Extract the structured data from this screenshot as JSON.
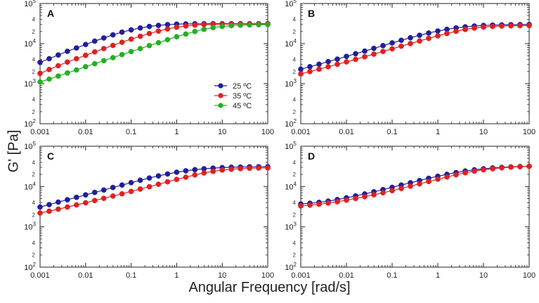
{
  "figure": {
    "ylabel": "G' [Pa]",
    "xlabel": "Angular Frequency [rad/s]"
  },
  "chart_data": [
    {
      "type": "scatter",
      "panel": "A",
      "xscale": "log",
      "yscale": "log",
      "xlim": [
        0.001,
        100
      ],
      "ylim": [
        100,
        100000
      ],
      "x_ticks": [
        "0.001",
        "0.01",
        "0.1",
        "1",
        "10",
        "100"
      ],
      "y_ticks": [
        "10^2",
        "10^3",
        "10^4",
        "10^5"
      ],
      "minor_labels": [
        "2",
        "4"
      ],
      "legend": {
        "position": "center",
        "entries": [
          "25 ºC",
          "35 ºC",
          "45 ºC"
        ]
      },
      "series": [
        {
          "name": "25 ºC",
          "color": "#1f1f9e",
          "y": [
            3400,
            4200,
            5200,
            6400,
            7800,
            9500,
            11500,
            13800,
            16500,
            19300,
            22000,
            24500,
            26800,
            28500,
            29800,
            30600,
            31000,
            31200,
            31300,
            31400,
            31400,
            31400,
            31400,
            31400,
            31400,
            31400
          ]
        },
        {
          "name": "35 ºC",
          "color": "#e02020",
          "y": [
            1800,
            2250,
            2800,
            3450,
            4200,
            5100,
            6200,
            7500,
            9000,
            10800,
            12900,
            15200,
            17800,
            20500,
            23200,
            25600,
            27600,
            28900,
            29800,
            30300,
            30600,
            30800,
            30900,
            31000,
            31000,
            31000
          ]
        },
        {
          "name": "45 ºC",
          "color": "#22b022",
          "y": [
            1100,
            1300,
            1550,
            1850,
            2200,
            2650,
            3150,
            3750,
            4450,
            5300,
            6300,
            7500,
            8900,
            10500,
            12500,
            14800,
            17300,
            20000,
            22700,
            25000,
            26800,
            28000,
            28800,
            29300,
            29600,
            29800
          ]
        }
      ]
    },
    {
      "type": "scatter",
      "panel": "B",
      "xscale": "log",
      "yscale": "log",
      "xlim": [
        0.001,
        100
      ],
      "ylim": [
        100,
        100000
      ],
      "x_ticks": [
        "0.001",
        "0.01",
        "0.1",
        "1",
        "10",
        "100"
      ],
      "y_ticks": [
        "10^2",
        "10^3",
        "10^4",
        "10^5"
      ],
      "minor_labels": [
        "2",
        "4"
      ],
      "series": [
        {
          "name": "25 ºC",
          "color": "#1f1f9e",
          "y": [
            2300,
            2650,
            3050,
            3550,
            4100,
            4800,
            5600,
            6500,
            7600,
            8900,
            10400,
            12100,
            14000,
            16100,
            18300,
            20600,
            22700,
            24600,
            26200,
            27400,
            28300,
            28900,
            29300,
            29600,
            29800,
            29900
          ]
        },
        {
          "name": "35 ºC",
          "color": "#e02020",
          "y": [
            1750,
            2000,
            2300,
            2650,
            3050,
            3500,
            4050,
            4700,
            5450,
            6350,
            7400,
            8600,
            10000,
            11600,
            13500,
            15600,
            17900,
            20300,
            22500,
            24400,
            25800,
            26800,
            27400,
            27800,
            28000,
            28200
          ]
        }
      ]
    },
    {
      "type": "scatter",
      "panel": "C",
      "xscale": "log",
      "yscale": "log",
      "xlim": [
        0.001,
        100
      ],
      "ylim": [
        100,
        100000
      ],
      "x_ticks": [
        "0.001",
        "0.01",
        "0.1",
        "1",
        "10",
        "100"
      ],
      "y_ticks": [
        "10^2",
        "10^3",
        "10^4",
        "10^5"
      ],
      "minor_labels": [
        "2",
        "4"
      ],
      "series": [
        {
          "name": "25 ºC",
          "color": "#1f1f9e",
          "y": [
            3100,
            3550,
            4100,
            4700,
            5400,
            6200,
            7150,
            8200,
            9450,
            10900,
            12500,
            14300,
            16300,
            18400,
            20500,
            22600,
            24500,
            26200,
            27600,
            28700,
            29500,
            30100,
            30500,
            30800,
            31000,
            31100
          ]
        },
        {
          "name": "35 ºC",
          "color": "#e02020",
          "y": [
            2200,
            2450,
            2750,
            3100,
            3500,
            3950,
            4500,
            5100,
            5800,
            6600,
            7550,
            8650,
            9900,
            11400,
            13100,
            15000,
            17100,
            19400,
            21700,
            23800,
            25600,
            26900,
            27800,
            28400,
            28800,
            29000
          ]
        }
      ]
    },
    {
      "type": "scatter",
      "panel": "D",
      "xscale": "log",
      "yscale": "log",
      "xlim": [
        0.001,
        100
      ],
      "ylim": [
        100,
        100000
      ],
      "x_ticks": [
        "0.001",
        "0.01",
        "0.1",
        "1",
        "10",
        "100"
      ],
      "y_ticks": [
        "10^2",
        "10^3",
        "10^4",
        "10^5"
      ],
      "minor_labels": [
        "2",
        "4"
      ],
      "series": [
        {
          "name": "25 ºC",
          "color": "#1f1f9e",
          "y": [
            3700,
            3850,
            4050,
            4350,
            4750,
            5250,
            5850,
            6550,
            7400,
            8400,
            9550,
            10900,
            12400,
            14100,
            16000,
            18000,
            20100,
            22200,
            24200,
            26000,
            27600,
            28900,
            29900,
            30700,
            31300,
            31800
          ]
        },
        {
          "name": "35 ºC",
          "color": "#e02020",
          "y": [
            3300,
            3450,
            3650,
            3900,
            4200,
            4600,
            5050,
            5600,
            6250,
            7000,
            7900,
            8950,
            10200,
            11600,
            13300,
            15200,
            17300,
            19600,
            21900,
            24100,
            26000,
            27700,
            29100,
            30200,
            31100,
            31800
          ]
        }
      ]
    }
  ]
}
